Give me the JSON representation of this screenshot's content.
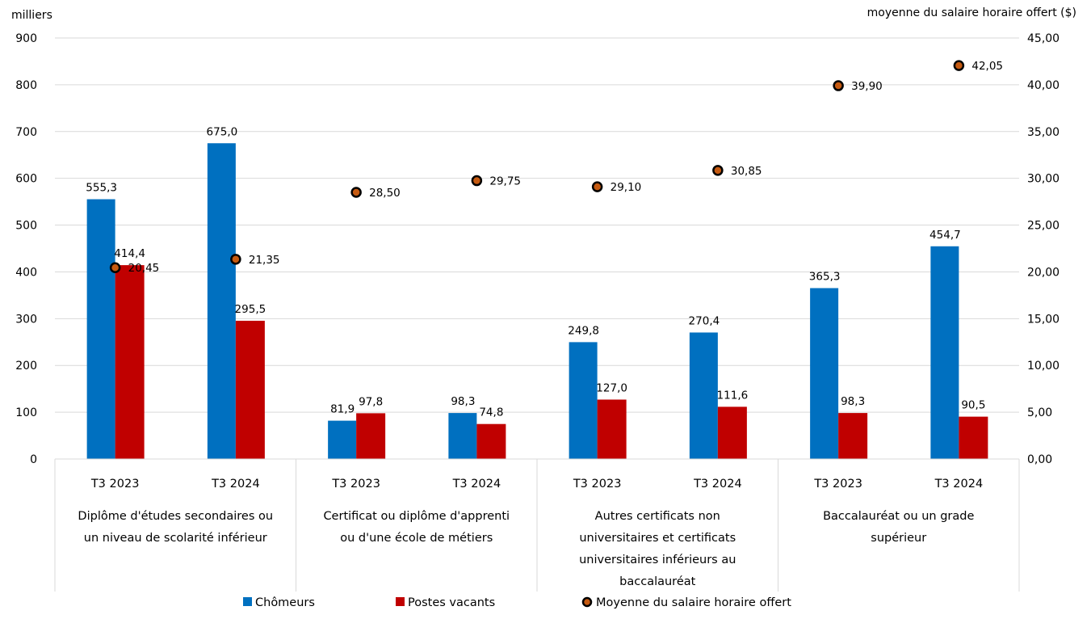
{
  "chart_data": {
    "type": "bar",
    "y_left_label": "milliers",
    "y_right_label": "moyenne du salaire horaire offert ($)",
    "ylim_left": [
      0,
      900
    ],
    "ylim_right": [
      0,
      45
    ],
    "yticks_left": [
      "0",
      "100",
      "200",
      "300",
      "400",
      "500",
      "600",
      "700",
      "800",
      "900"
    ],
    "yticks_right": [
      "0,00",
      "5,00",
      "10,00",
      "15,00",
      "20,00",
      "25,00",
      "30,00",
      "35,00",
      "40,00",
      "45,00"
    ],
    "grid": true,
    "legend_position": "bottom",
    "categories": [
      "T3 2023",
      "T3 2024",
      "T3 2023",
      "T3 2024",
      "T3 2023",
      "T3 2024",
      "T3 2023",
      "T3 2024"
    ],
    "groups": [
      {
        "lines": [
          "Diplôme d'études secondaires ou",
          "un niveau de scolarité inférieur"
        ]
      },
      {
        "lines": [
          "Certificat ou diplôme d'apprenti",
          "ou d'une école de métiers"
        ]
      },
      {
        "lines": [
          "Autres certificats non",
          "universitaires et certificats",
          "universitaires inférieurs au",
          "baccalauréat"
        ]
      },
      {
        "lines": [
          "Baccalauréat ou un grade",
          "supérieur"
        ]
      }
    ],
    "series": [
      {
        "name": "Chômeurs",
        "type": "bar",
        "axis": "left",
        "color": "#0070c0",
        "values": [
          555.3,
          675.0,
          81.9,
          98.3,
          249.8,
          270.4,
          365.3,
          454.7
        ],
        "labels": [
          "555,3",
          "675,0",
          "81,9",
          "98,3",
          "249,8",
          "270,4",
          "365,3",
          "454,7"
        ]
      },
      {
        "name": "Postes vacants",
        "type": "bar",
        "axis": "left",
        "color": "#c00000",
        "values": [
          414.4,
          295.5,
          97.8,
          74.8,
          127.0,
          111.6,
          98.3,
          90.5
        ],
        "labels": [
          "414,4",
          "295,5",
          "97,8",
          "74,8",
          "127,0",
          "111,6",
          "98,3",
          "90,5"
        ]
      },
      {
        "name": "Moyenne du salaire horaire offert",
        "type": "scatter",
        "axis": "right",
        "color": "#c55a11",
        "values": [
          20.45,
          21.35,
          28.5,
          29.75,
          29.1,
          30.85,
          39.9,
          42.05
        ],
        "labels": [
          "20,45",
          "21,35",
          "28,50",
          "29,75",
          "29,10",
          "30,85",
          "39,90",
          "42,05"
        ]
      }
    ]
  }
}
